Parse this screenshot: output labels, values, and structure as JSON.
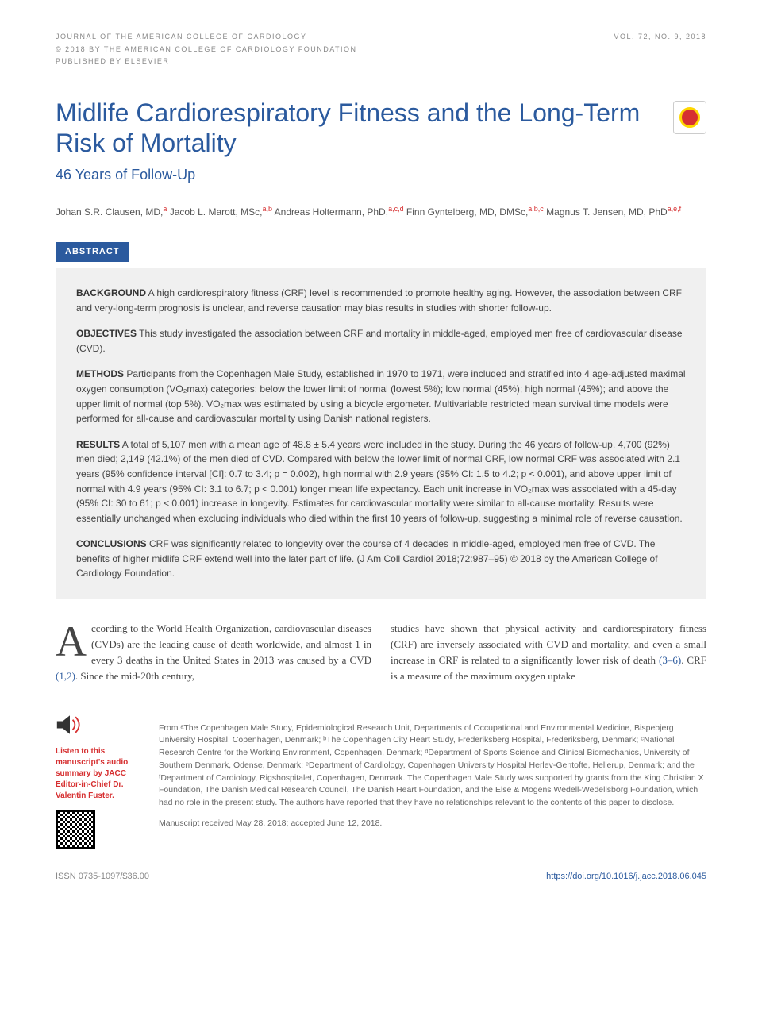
{
  "header": {
    "journal": "JOURNAL OF THE AMERICAN COLLEGE OF CARDIOLOGY",
    "issue": "VOL. 72, NO. 9, 2018",
    "copyright": "© 2018 BY THE AMERICAN COLLEGE OF CARDIOLOGY FOUNDATION",
    "publisher": "PUBLISHED BY ELSEVIER"
  },
  "title": "Midlife Cardiorespiratory Fitness and the Long-Term Risk of Mortality",
  "subtitle": "46 Years of Follow-Up",
  "authors_html": "Johan S.R. Clausen, MD,<sup>a</sup> Jacob L. Marott, MSc,<sup>a,b</sup> Andreas Holtermann, PhD,<sup>a,c,d</sup> Finn Gyntelberg, MD, DMSc,<sup>a,b,c</sup> Magnus T. Jensen, MD, PhD<sup>a,e,f</sup>",
  "abstract_label": "ABSTRACT",
  "abstract": {
    "background_label": "BACKGROUND",
    "background": "A high cardiorespiratory fitness (CRF) level is recommended to promote healthy aging. However, the association between CRF and very-long-term prognosis is unclear, and reverse causation may bias results in studies with shorter follow-up.",
    "objectives_label": "OBJECTIVES",
    "objectives": "This study investigated the association between CRF and mortality in middle-aged, employed men free of cardiovascular disease (CVD).",
    "methods_label": "METHODS",
    "methods": "Participants from the Copenhagen Male Study, established in 1970 to 1971, were included and stratified into 4 age-adjusted maximal oxygen consumption (VO₂max) categories: below the lower limit of normal (lowest 5%); low normal (45%); high normal (45%); and above the upper limit of normal (top 5%). VO₂max was estimated by using a bicycle ergometer. Multivariable restricted mean survival time models were performed for all-cause and cardiovascular mortality using Danish national registers.",
    "results_label": "RESULTS",
    "results": "A total of 5,107 men with a mean age of 48.8 ± 5.4 years were included in the study. During the 46 years of follow-up, 4,700 (92%) men died; 2,149 (42.1%) of the men died of CVD. Compared with below the lower limit of normal CRF, low normal CRF was associated with 2.1 years (95% confidence interval [CI]: 0.7 to 3.4; p = 0.002), high normal with 2.9 years (95% CI: 1.5 to 4.2; p < 0.001), and above upper limit of normal with 4.9 years (95% CI: 3.1 to 6.7; p < 0.001) longer mean life expectancy. Each unit increase in VO₂max was associated with a 45-day (95% CI: 30 to 61; p < 0.001) increase in longevity. Estimates for cardiovascular mortality were similar to all-cause mortality. Results were essentially unchanged when excluding individuals who died within the first 10 years of follow-up, suggesting a minimal role of reverse causation.",
    "conclusions_label": "CONCLUSIONS",
    "conclusions": "CRF was significantly related to longevity over the course of 4 decades in middle-aged, employed men free of CVD. The benefits of higher midlife CRF extend well into the later part of life. (J Am Coll Cardiol 2018;72:987–95) © 2018 by the American College of Cardiology Foundation."
  },
  "body": {
    "col1_dropcap": "A",
    "col1": "ccording to the World Health Organization, cardiovascular diseases (CVDs) are the leading cause of death worldwide, and almost 1 in every 3 deaths in the United States in 2013 was caused by a CVD ",
    "col1_cite": "(1,2)",
    "col1_tail": ". Since the mid-20th century,",
    "col2": "studies have shown that physical activity and cardiorespiratory fitness (CRF) are inversely associated with CVD and mortality, and even a small increase in CRF is related to a significantly lower risk of death ",
    "col2_cite": "(3–6)",
    "col2_tail": ". CRF is a measure of the maximum oxygen uptake"
  },
  "audio_promo": "Listen to this manuscript's audio summary by JACC Editor-in-Chief Dr. Valentin Fuster.",
  "affiliations": "From ᵃThe Copenhagen Male Study, Epidemiological Research Unit, Departments of Occupational and Environmental Medicine, Bispebjerg University Hospital, Copenhagen, Denmark; ᵇThe Copenhagen City Heart Study, Frederiksberg Hospital, Frederiksberg, Denmark; ᶜNational Research Centre for the Working Environment, Copenhagen, Denmark; ᵈDepartment of Sports Science and Clinical Biomechanics, University of Southern Denmark, Odense, Denmark; ᵉDepartment of Cardiology, Copenhagen University Hospital Herlev-Gentofte, Hellerup, Denmark; and the ᶠDepartment of Cardiology, Rigshospitalet, Copenhagen, Denmark. The Copenhagen Male Study was supported by grants from the King Christian X Foundation, The Danish Medical Research Council, The Danish Heart Foundation, and the Else & Mogens Wedell-Wedellsborg Foundation, which had no role in the present study. The authors have reported that they have no relationships relevant to the contents of this paper to disclose.",
  "received": "Manuscript received May 28, 2018; accepted June 12, 2018.",
  "footer": {
    "issn": "ISSN 0735-1097/$36.00",
    "doi": "https://doi.org/10.1016/j.jacc.2018.06.045"
  },
  "colors": {
    "primary_blue": "#2b5a9e",
    "accent_red": "#d63031",
    "abstract_bg": "#f0f0f0",
    "text_gray": "#444444",
    "light_gray": "#888888"
  }
}
